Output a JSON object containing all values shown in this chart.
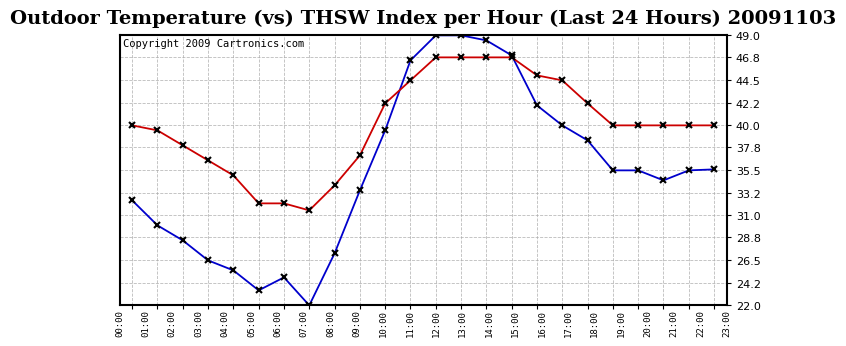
{
  "title": "Outdoor Temperature (vs) THSW Index per Hour (Last 24 Hours) 20091103",
  "copyright": "Copyright 2009 Cartronics.com",
  "hours": [
    "00:00",
    "01:00",
    "02:00",
    "03:00",
    "04:00",
    "05:00",
    "06:00",
    "07:00",
    "08:00",
    "09:00",
    "10:00",
    "11:00",
    "12:00",
    "13:00",
    "14:00",
    "15:00",
    "16:00",
    "17:00",
    "18:00",
    "19:00",
    "20:00",
    "21:00",
    "22:00",
    "23:00"
  ],
  "blue_data": [
    32.5,
    30.0,
    28.5,
    26.5,
    25.5,
    23.5,
    24.8,
    22.0,
    27.2,
    33.5,
    39.5,
    46.5,
    49.0,
    49.0,
    48.5,
    47.0,
    42.0,
    40.0,
    38.5,
    35.5,
    35.5,
    34.5,
    35.5,
    35.6
  ],
  "red_data": [
    40.0,
    39.5,
    38.0,
    36.5,
    35.0,
    32.2,
    32.2,
    31.5,
    34.0,
    37.0,
    42.2,
    44.5,
    46.8,
    46.8,
    46.8,
    46.8,
    45.0,
    44.5,
    42.2,
    40.0,
    40.0,
    40.0,
    40.0,
    40.0
  ],
  "ylim": [
    22.0,
    49.0
  ],
  "yticks": [
    22.0,
    24.2,
    26.5,
    28.8,
    31.0,
    33.2,
    35.5,
    37.8,
    40.0,
    42.2,
    44.5,
    46.8,
    49.0
  ],
  "blue_color": "#0000cc",
  "red_color": "#cc0000",
  "grid_color": "#aaaaaa",
  "bg_color": "#ffffff",
  "title_fontsize": 14,
  "copyright_fontsize": 7.5
}
